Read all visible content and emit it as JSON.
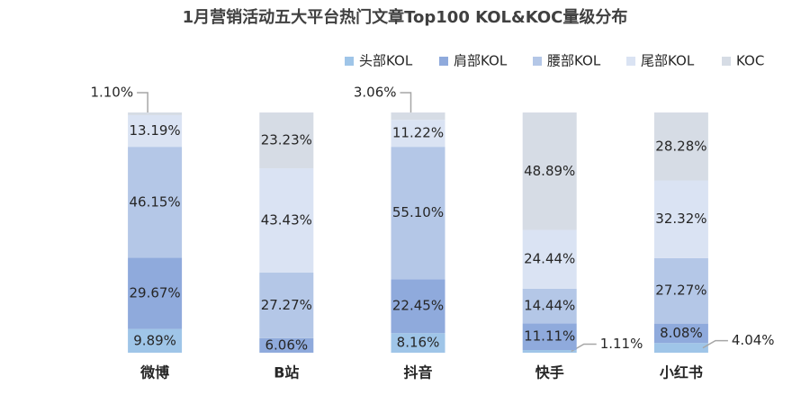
{
  "chart_data": {
    "type": "stacked-bar",
    "title": "1月营销活动五大平台热门文章Top100  KOL&KOC量级分布",
    "categories": [
      "微博",
      "B站",
      "抖音",
      "快手",
      "小红书"
    ],
    "ylim": [
      0,
      100
    ],
    "legend": "top-right",
    "series": [
      {
        "name": "头部KOL",
        "color": "#9fc5e8",
        "values": [
          9.89,
          null,
          8.16,
          1.11,
          4.04
        ],
        "value_labels": [
          "9.89%",
          null,
          "8.16%",
          "1.11%",
          "4.04%"
        ]
      },
      {
        "name": "肩部KOL",
        "color": "#8faadc",
        "values": [
          29.67,
          6.06,
          22.45,
          11.11,
          8.08
        ],
        "value_labels": [
          "29.67%",
          "6.06%",
          "22.45%",
          "11.11%",
          "8.08%"
        ]
      },
      {
        "name": "腰部KOL",
        "color": "#b4c7e7",
        "values": [
          46.15,
          27.27,
          55.1,
          14.44,
          27.27
        ],
        "value_labels": [
          "46.15%",
          "27.27%",
          "55.10%",
          "14.44%",
          "27.27%"
        ]
      },
      {
        "name": "尾部KOL",
        "color": "#dae3f3",
        "values": [
          13.19,
          43.43,
          11.22,
          24.44,
          32.32
        ],
        "value_labels": [
          "13.19%",
          "43.43%",
          "11.22%",
          "24.44%",
          "32.32%"
        ]
      },
      {
        "name": "KOC",
        "color": "#d6dce5",
        "values": [
          1.1,
          23.23,
          3.06,
          48.89,
          28.28
        ],
        "value_labels": [
          "1.10%",
          "23.23%",
          "3.06%",
          "48.89%",
          "28.28%"
        ]
      }
    ]
  }
}
